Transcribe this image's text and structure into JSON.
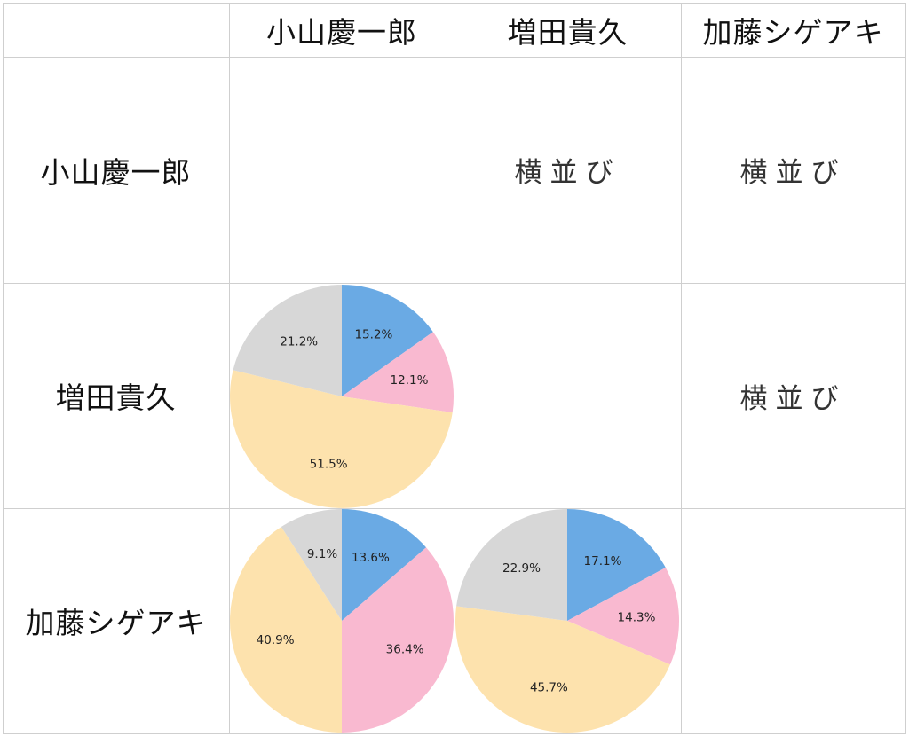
{
  "column_headers": [
    "小山慶一郎",
    "増田貴久",
    "加藤シゲアキ"
  ],
  "row_headers": [
    "小山慶一郎",
    "増田貴久",
    "加藤シゲアキ"
  ],
  "colors": {
    "blue": "#6aaae4",
    "pink": "#f9b9d0",
    "yellow": "#fde2ad",
    "gray": "#d7d7d7",
    "grid": "#cfcfcf"
  },
  "cells": [
    [
      "",
      "横並び",
      "横並び"
    ],
    [
      "",
      "",
      "横並び"
    ],
    [
      "",
      "",
      ""
    ]
  ],
  "chart_data": [
    {
      "type": "pie",
      "row": "増田貴久",
      "column": "小山慶一郎",
      "slices": [
        {
          "value": 15.2,
          "label": "15.2%",
          "color": "#6aaae4"
        },
        {
          "value": 12.1,
          "label": "12.1%",
          "color": "#f9b9d0"
        },
        {
          "value": 51.5,
          "label": "51.5%",
          "color": "#fde2ad"
        },
        {
          "value": 21.2,
          "label": "21.2%",
          "color": "#d7d7d7"
        }
      ]
    },
    {
      "type": "pie",
      "row": "加藤シゲアキ",
      "column": "小山慶一郎",
      "slices": [
        {
          "value": 13.6,
          "label": "13.6%",
          "color": "#6aaae4"
        },
        {
          "value": 36.4,
          "label": "36.4%",
          "color": "#f9b9d0"
        },
        {
          "value": 40.9,
          "label": "40.9%",
          "color": "#fde2ad"
        },
        {
          "value": 9.1,
          "label": "9.1%",
          "color": "#d7d7d7"
        }
      ]
    },
    {
      "type": "pie",
      "row": "加藤シゲアキ",
      "column": "増田貴久",
      "slices": [
        {
          "value": 17.1,
          "label": "17.1%",
          "color": "#6aaae4"
        },
        {
          "value": 14.3,
          "label": "14.3%",
          "color": "#f9b9d0"
        },
        {
          "value": 45.7,
          "label": "45.7%",
          "color": "#fde2ad"
        },
        {
          "value": 22.9,
          "label": "22.9%",
          "color": "#d7d7d7"
        }
      ]
    }
  ]
}
